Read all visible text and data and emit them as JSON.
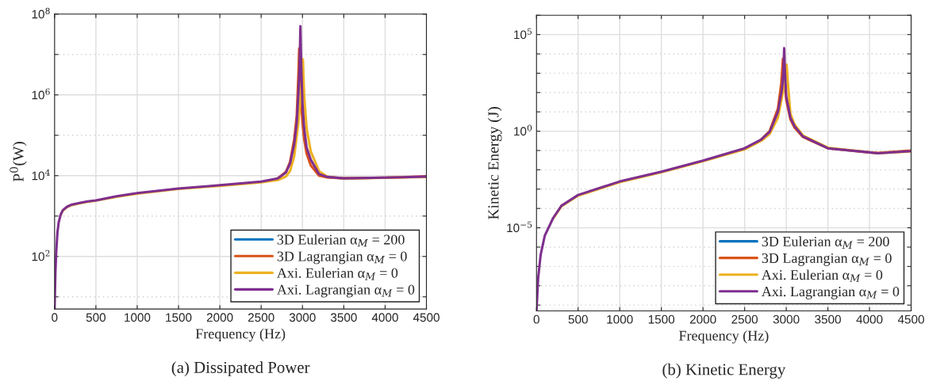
{
  "chart_data": [
    {
      "type": "line",
      "title": "(a) Dissipated Power",
      "xlabel": "Frequency (Hz)",
      "ylabel": "P$^{0}$(W)",
      "log": "y",
      "grid": true,
      "legend": "bottom right",
      "line_style": "solid",
      "xlim": [
        0,
        4500
      ],
      "xticks": [
        0,
        500,
        1000,
        1500,
        2000,
        2500,
        3000,
        3500,
        4000,
        4500
      ],
      "ylim": [
        5,
        100000000
      ],
      "yticks": [
        {
          "value": 10,
          "label": null
        },
        {
          "value": 100,
          "label": "10$^{2}$"
        },
        {
          "value": 1000,
          "label": null
        },
        {
          "value": 10000,
          "label": "10$^{4}$"
        },
        {
          "value": 100000,
          "label": null
        },
        {
          "value": 1000000,
          "label": "10$^{6}$"
        },
        {
          "value": 10000000,
          "label": null
        },
        {
          "value": 100000000,
          "label": "10$^{8}$"
        }
      ],
      "series": [
        {
          "name": "3D Eulerian α$_{M}$ = 200",
          "color": "#0072bd"
        },
        {
          "name": "3D Lagrangian α$_{M}$ = 0",
          "color": "#d95319",
          "x": [
            2700,
            2800,
            2850,
            2900,
            2930,
            2950,
            2960,
            2975,
            2985,
            3000,
            3020,
            3050,
            3100,
            3200,
            3300,
            3500,
            4000,
            4500
          ],
          "values": [
            8600,
            12500,
            22000,
            80000,
            300000,
            3000000,
            14000000,
            1500000,
            600000,
            200000,
            80000,
            35000,
            18000,
            10000,
            9000,
            8600,
            8900,
            9600
          ]
        },
        {
          "name": "Axi. Eulerian α$_{M}$ = 0",
          "color": "#edb120",
          "x": [
            75,
            100,
            150,
            200,
            300,
            400,
            500,
            750,
            1000,
            1500,
            2000,
            2500,
            2700,
            2800,
            2850,
            2900,
            2950,
            2985,
            3005,
            3020,
            3050,
            3100,
            3200,
            3300,
            3500,
            4000,
            4500
          ],
          "values": [
            1080,
            1370,
            1650,
            1850,
            2050,
            2250,
            2400,
            3000,
            3600,
            4700,
            5600,
            6800,
            7800,
            9500,
            13000,
            30000,
            200000,
            1500000,
            7600000,
            1000000,
            150000,
            40000,
            13000,
            9500,
            8500,
            8800,
            9300
          ]
        },
        {
          "name": "Axi. Lagrangian α$_{M}$ = 0",
          "color": "#7e2f8e",
          "x": [
            0,
            10,
            20,
            35,
            50,
            75,
            100,
            150,
            200,
            300,
            400,
            500,
            750,
            1000,
            1500,
            2000,
            2500,
            2700,
            2800,
            2850,
            2900,
            2930,
            2950,
            2965,
            2975,
            2985,
            3000,
            3020,
            3050,
            3100,
            3200,
            3300,
            3500,
            4000,
            4500
          ],
          "values": [
            5,
            40,
            130,
            400,
            700,
            1100,
            1400,
            1700,
            1900,
            2100,
            2300,
            2450,
            3100,
            3700,
            4800,
            5800,
            7100,
            8500,
            12000,
            20000,
            60000,
            200000,
            1000000,
            5000000,
            50000000,
            5000000,
            600000,
            150000,
            50000,
            25000,
            11000,
            9300,
            8600,
            8900,
            9500
          ]
        }
      ]
    },
    {
      "type": "line",
      "title": "(b) Kinetic Energy",
      "xlabel": "Frequency (Hz)",
      "ylabel": "Kinetic Energy (J)",
      "log": "y",
      "grid": true,
      "legend": "bottom right",
      "line_style": "solid",
      "xlim": [
        0,
        4500
      ],
      "xticks": [
        0,
        500,
        1000,
        1500,
        2000,
        2500,
        3000,
        3500,
        4000,
        4500
      ],
      "ylim": [
        5e-10,
        1000000
      ],
      "yticks": [
        {
          "value": 1e-09,
          "label": null
        },
        {
          "value": 1e-08,
          "label": null
        },
        {
          "value": 1e-07,
          "label": null
        },
        {
          "value": 1e-06,
          "label": null
        },
        {
          "value": 1e-05,
          "label": "10$^{−5}$"
        },
        {
          "value": 0.0001,
          "label": null
        },
        {
          "value": 0.001,
          "label": null
        },
        {
          "value": 0.01,
          "label": null
        },
        {
          "value": 0.1,
          "label": null
        },
        {
          "value": 1,
          "label": "10$^{0}$"
        },
        {
          "value": 10,
          "label": null
        },
        {
          "value": 100,
          "label": null
        },
        {
          "value": 1000,
          "label": null
        },
        {
          "value": 10000,
          "label": null
        },
        {
          "value": 100000,
          "label": "10$^{5}$"
        },
        {
          "value": 1000000,
          "label": null
        }
      ],
      "series": [
        {
          "name": "3D Eulerian α$_{M}$ = 200",
          "color": "#0072bd"
        },
        {
          "name": "3D Lagrangian α$_{M}$ = 0",
          "color": "#d95319",
          "x": [
            2700,
            2800,
            2900,
            2940,
            2960,
            2975,
            2985,
            3000,
            3050,
            3100,
            3200,
            3500,
            4000,
            4100,
            4500
          ],
          "values": [
            0.38,
            1,
            15,
            300,
            5600,
            800,
            200,
            40,
            4,
            1.5,
            0.5,
            0.13,
            0.08,
            0.075,
            0.1
          ]
        },
        {
          "name": "Axi. Eulerian α$_{M}$ = 0",
          "color": "#edb120",
          "x": [
            200,
            300,
            500,
            1000,
            1500,
            2000,
            2500,
            2700,
            2800,
            2900,
            2950,
            2985,
            3005,
            3020,
            3050,
            3100,
            3200,
            3500,
            4000,
            4100,
            4500
          ],
          "values": [
            3e-05,
            0.00013,
            0.00046,
            0.0023,
            0.0074,
            0.028,
            0.115,
            0.32,
            0.7,
            5,
            60,
            500,
            2800,
            300,
            8,
            2.2,
            0.6,
            0.14,
            0.08,
            0.072,
            0.09
          ]
        },
        {
          "name": "Axi. Lagrangian α$_{M}$ = 0",
          "color": "#7e2f8e",
          "x": [
            0,
            20,
            50,
            100,
            200,
            300,
            500,
            1000,
            1500,
            2000,
            2500,
            2700,
            2800,
            2900,
            2950,
            2965,
            2975,
            2985,
            3000,
            3050,
            3100,
            3200,
            3500,
            4000,
            4100,
            4500
          ],
          "values": [
            5e-10,
            2.5e-08,
            4e-07,
            4e-06,
            3.2e-05,
            0.00014,
            0.0005,
            0.0025,
            0.008,
            0.03,
            0.13,
            0.37,
            0.9,
            10,
            160,
            1000,
            20000,
            1000,
            63,
            5,
            1.8,
            0.54,
            0.13,
            0.08,
            0.072,
            0.093
          ]
        }
      ]
    }
  ]
}
